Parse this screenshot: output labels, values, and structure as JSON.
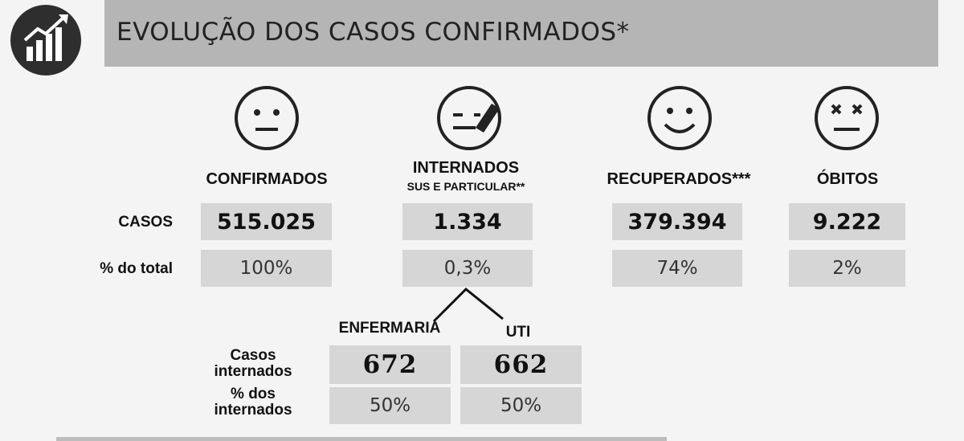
{
  "header": {
    "title": "EVOLUÇÃO DOS CASOS CONFIRMADOS*",
    "icon": "bar-chart-growth-icon"
  },
  "columns": [
    {
      "key": "confirmados",
      "label": "CONFIRMADOS",
      "sub": "",
      "icon": "neutral-face-icon",
      "casos": "515.025",
      "pct": "100%"
    },
    {
      "key": "internados",
      "label": "INTERNADOS",
      "sub": "SUS E PARTICULAR**",
      "icon": "face-in-bed-icon",
      "casos": "1.334",
      "pct": "0,3%"
    },
    {
      "key": "recuperados",
      "label": "RECUPERADOS***",
      "sub": "",
      "icon": "smiling-face-icon",
      "casos": "379.394",
      "pct": "74%"
    },
    {
      "key": "obitos",
      "label": "ÓBITOS",
      "sub": "",
      "icon": "dead-face-icon",
      "casos": "9.222",
      "pct": "2%"
    }
  ],
  "row_labels": {
    "casos": "CASOS",
    "pct": "% do total"
  },
  "breakdown": {
    "enfermaria_label": "ENFERMARIA",
    "uti_label": "UTI",
    "row1_label_line1": "Casos",
    "row1_label_line2": "internados",
    "row2_label_line1": "% dos",
    "row2_label_line2": "internados",
    "enfermaria_casos": "672",
    "uti_casos": "662",
    "enfermaria_pct": "50%",
    "uti_pct": "50%"
  },
  "colors": {
    "header_bg": "#b5b5b5",
    "box_bg": "#d6d6d6",
    "badge_bg": "#2e2e2e"
  }
}
